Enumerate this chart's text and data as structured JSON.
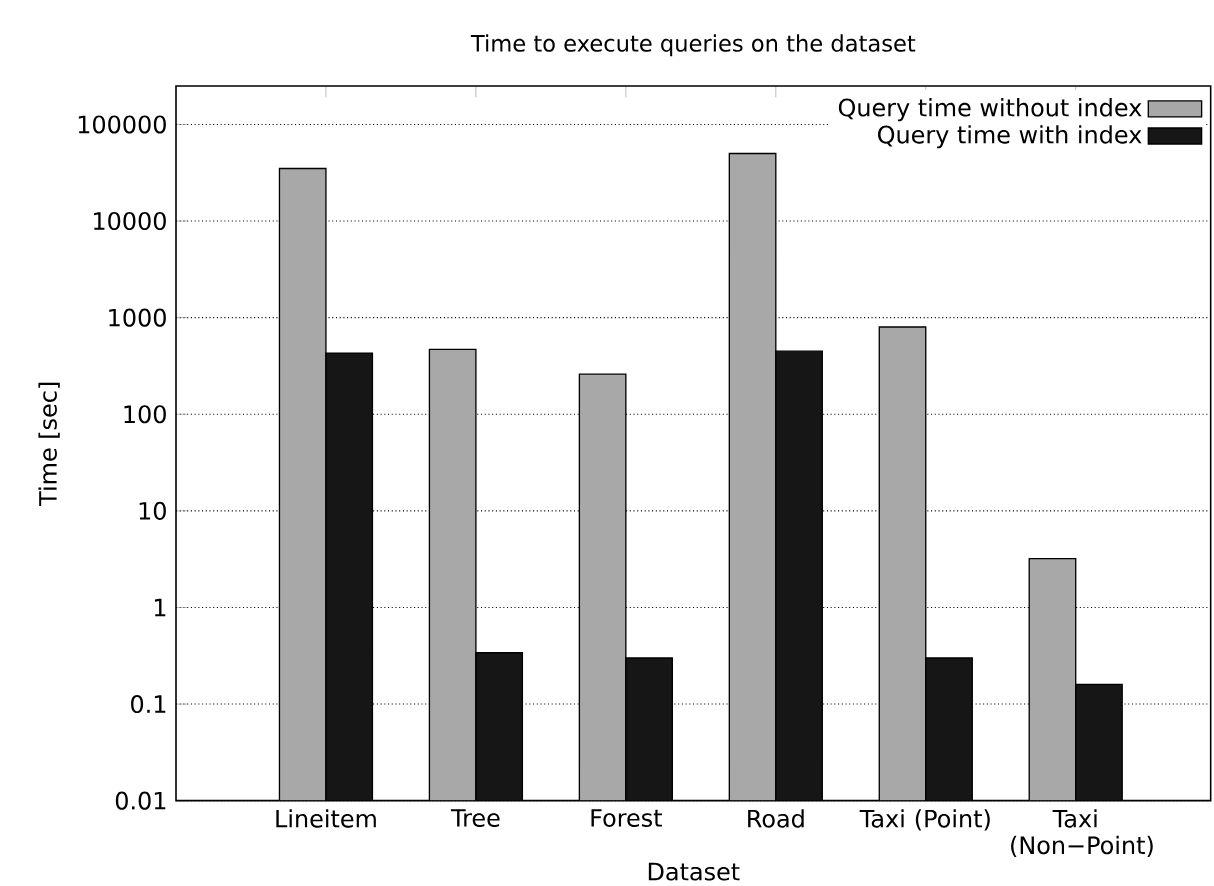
{
  "chart_data": {
    "type": "bar",
    "title": "Time to execute queries on the dataset",
    "xlabel": "Dataset",
    "ylabel": "Time [sec]",
    "categories": [
      "Lineitem",
      "Tree",
      "Forest",
      "Road",
      "Taxi (Point)",
      "Taxi (Non−Point)"
    ],
    "series": [
      {
        "name": "Query time without index",
        "color": "#a8a8a8",
        "values": [
          35000,
          470,
          260,
          50000,
          800,
          3.2
        ]
      },
      {
        "name": "Query time with index",
        "color": "#161616",
        "values": [
          430,
          0.34,
          0.3,
          450,
          0.3,
          0.16
        ]
      }
    ],
    "log": "y",
    "ylim": [
      0.01,
      250000
    ],
    "yticks": [
      0.01,
      0.1,
      1,
      10,
      100,
      1000,
      10000,
      100000
    ],
    "grid": "y",
    "legend": "top right"
  }
}
